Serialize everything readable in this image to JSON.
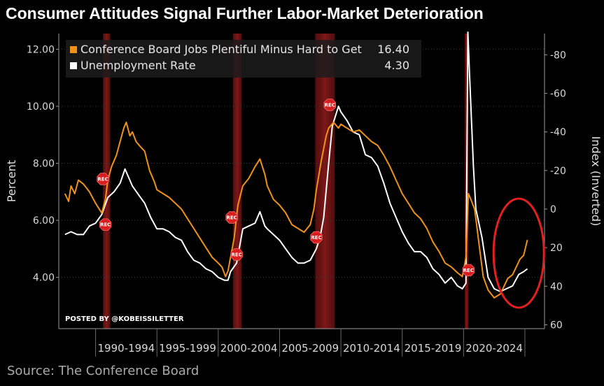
{
  "title": "Consumer Attitudes Signal Further Labor-Market Deterioration",
  "source": "Source: The Conference Board",
  "watermark": "POSTED BY @KOBEISSILETTER",
  "chart_data": {
    "type": "line",
    "ylabel_left": "Percent",
    "ylabel_right": "Index (Inverted)",
    "left_ticks": [
      "12.00",
      "10.00",
      "8.00",
      "6.00",
      "4.00"
    ],
    "left_range": [
      2.2,
      12.55
    ],
    "right_ticks": [
      "-80",
      "-60",
      "-40",
      "-20",
      "0",
      "20",
      "40",
      "60"
    ],
    "right_range_inverted": [
      62,
      -91
    ],
    "x_range": [
      1987.0,
      2026.6
    ],
    "x_tick_labels": [
      "1990-1994",
      "1995-1999",
      "2000-2004",
      "2005-2009",
      "2010-2014",
      "2015-2019",
      "2020-2024"
    ],
    "legend": [
      {
        "label": "Conference Board Jobs Plentiful Minus Hard to Get",
        "value": "16.40",
        "color": "#f0921a"
      },
      {
        "label": "Unemployment Rate",
        "value": "4.30",
        "color": "#ffffff"
      }
    ],
    "recessions": [
      [
        1990.6,
        1991.2
      ],
      [
        2001.2,
        2001.9
      ],
      [
        2007.9,
        2009.5
      ],
      [
        2020.1,
        2020.4
      ]
    ],
    "rec_markers": [
      {
        "x": 1990.6,
        "y_pct": 7.45,
        "text": "REC"
      },
      {
        "x": 1990.8,
        "y_pct": 5.85,
        "text": "REC"
      },
      {
        "x": 2001.1,
        "y_pct": 6.1,
        "text": "REC"
      },
      {
        "x": 2001.5,
        "y_pct": 4.8,
        "text": "REC"
      },
      {
        "x": 2008.0,
        "y_pct": 5.4,
        "text": "REC"
      },
      {
        "x": 2009.1,
        "y_pct": 10.05,
        "text": "REC"
      },
      {
        "x": 2020.4,
        "y_pct": 4.25,
        "text": "REC"
      }
    ],
    "series": [
      {
        "name": "Unemployment Rate",
        "axis": "left",
        "color": "#ffffff",
        "points": [
          [
            1987.5,
            5.5
          ],
          [
            1988.0,
            5.6
          ],
          [
            1988.5,
            5.5
          ],
          [
            1989.0,
            5.5
          ],
          [
            1989.5,
            5.8
          ],
          [
            1990.0,
            5.9
          ],
          [
            1990.5,
            6.2
          ],
          [
            1991.0,
            6.8
          ],
          [
            1991.5,
            7.0
          ],
          [
            1992.0,
            7.3
          ],
          [
            1992.4,
            7.8
          ],
          [
            1992.7,
            7.5
          ],
          [
            1993.0,
            7.2
          ],
          [
            1993.5,
            6.9
          ],
          [
            1994.0,
            6.6
          ],
          [
            1994.5,
            6.1
          ],
          [
            1995.0,
            5.7
          ],
          [
            1995.5,
            5.7
          ],
          [
            1996.0,
            5.6
          ],
          [
            1996.5,
            5.4
          ],
          [
            1997.0,
            5.3
          ],
          [
            1997.5,
            4.9
          ],
          [
            1998.0,
            4.6
          ],
          [
            1998.5,
            4.5
          ],
          [
            1999.0,
            4.3
          ],
          [
            1999.5,
            4.2
          ],
          [
            2000.0,
            4.0
          ],
          [
            2000.5,
            3.9
          ],
          [
            2000.8,
            3.9
          ],
          [
            2001.0,
            4.2
          ],
          [
            2001.5,
            4.5
          ],
          [
            2002.0,
            5.7
          ],
          [
            2002.5,
            5.8
          ],
          [
            2003.0,
            5.9
          ],
          [
            2003.4,
            6.3
          ],
          [
            2003.8,
            5.8
          ],
          [
            2004.0,
            5.7
          ],
          [
            2004.5,
            5.5
          ],
          [
            2005.0,
            5.3
          ],
          [
            2005.5,
            5.0
          ],
          [
            2006.0,
            4.7
          ],
          [
            2006.5,
            4.5
          ],
          [
            2007.0,
            4.5
          ],
          [
            2007.5,
            4.6
          ],
          [
            2008.0,
            5.0
          ],
          [
            2008.3,
            5.4
          ],
          [
            2008.6,
            6.1
          ],
          [
            2009.0,
            8.0
          ],
          [
            2009.3,
            9.3
          ],
          [
            2009.8,
            10.0
          ],
          [
            2010.0,
            9.8
          ],
          [
            2010.5,
            9.5
          ],
          [
            2011.0,
            9.1
          ],
          [
            2011.5,
            9.0
          ],
          [
            2012.0,
            8.3
          ],
          [
            2012.5,
            8.2
          ],
          [
            2013.0,
            7.9
          ],
          [
            2013.5,
            7.3
          ],
          [
            2014.0,
            6.6
          ],
          [
            2014.5,
            6.1
          ],
          [
            2015.0,
            5.6
          ],
          [
            2015.5,
            5.2
          ],
          [
            2016.0,
            4.9
          ],
          [
            2016.5,
            4.9
          ],
          [
            2017.0,
            4.7
          ],
          [
            2017.5,
            4.3
          ],
          [
            2018.0,
            4.1
          ],
          [
            2018.5,
            3.8
          ],
          [
            2019.0,
            4.0
          ],
          [
            2019.5,
            3.7
          ],
          [
            2019.9,
            3.6
          ],
          [
            2020.2,
            3.8
          ],
          [
            2020.35,
            14.7
          ],
          [
            2020.5,
            11.0
          ],
          [
            2020.8,
            7.9
          ],
          [
            2021.0,
            6.4
          ],
          [
            2021.5,
            5.4
          ],
          [
            2022.0,
            4.0
          ],
          [
            2022.5,
            3.6
          ],
          [
            2023.0,
            3.5
          ],
          [
            2023.5,
            3.6
          ],
          [
            2024.0,
            3.7
          ],
          [
            2024.5,
            4.1
          ],
          [
            2024.9,
            4.2
          ],
          [
            2025.2,
            4.3
          ]
        ]
      },
      {
        "name": "Conference Board Jobs Plentiful Minus Hard to Get",
        "axis": "right",
        "color": "#f0921a",
        "points": [
          [
            1987.5,
            -8
          ],
          [
            1987.8,
            -4
          ],
          [
            1988.0,
            -12
          ],
          [
            1988.3,
            -8
          ],
          [
            1988.6,
            -15
          ],
          [
            1989.0,
            -13
          ],
          [
            1989.5,
            -9
          ],
          [
            1990.0,
            -3
          ],
          [
            1990.5,
            2
          ],
          [
            1990.8,
            -5
          ],
          [
            1991.0,
            -15
          ],
          [
            1991.3,
            -22
          ],
          [
            1991.7,
            -28
          ],
          [
            1992.0,
            -35
          ],
          [
            1992.3,
            -42
          ],
          [
            1992.5,
            -45
          ],
          [
            1992.8,
            -38
          ],
          [
            1993.0,
            -40
          ],
          [
            1993.3,
            -35
          ],
          [
            1993.7,
            -32
          ],
          [
            1994.0,
            -30
          ],
          [
            1994.4,
            -20
          ],
          [
            1994.8,
            -14
          ],
          [
            1995.0,
            -10
          ],
          [
            1995.5,
            -8
          ],
          [
            1996.0,
            -6
          ],
          [
            1996.5,
            -3
          ],
          [
            1997.0,
            0
          ],
          [
            1997.5,
            5
          ],
          [
            1998.0,
            10
          ],
          [
            1998.5,
            15
          ],
          [
            1999.0,
            20
          ],
          [
            1999.5,
            25
          ],
          [
            2000.0,
            28
          ],
          [
            2000.3,
            30
          ],
          [
            2000.6,
            35
          ],
          [
            2000.8,
            32
          ],
          [
            2001.0,
            25
          ],
          [
            2001.3,
            15
          ],
          [
            2001.6,
            -2
          ],
          [
            2002.0,
            -12
          ],
          [
            2002.5,
            -16
          ],
          [
            2003.0,
            -22
          ],
          [
            2003.4,
            -26
          ],
          [
            2003.8,
            -18
          ],
          [
            2004.0,
            -12
          ],
          [
            2004.5,
            -5
          ],
          [
            2005.0,
            -2
          ],
          [
            2005.5,
            2
          ],
          [
            2006.0,
            8
          ],
          [
            2006.5,
            10
          ],
          [
            2007.0,
            12
          ],
          [
            2007.5,
            8
          ],
          [
            2007.8,
            0
          ],
          [
            2008.0,
            -10
          ],
          [
            2008.4,
            -25
          ],
          [
            2008.8,
            -38
          ],
          [
            2009.0,
            -42
          ],
          [
            2009.4,
            -45
          ],
          [
            2009.8,
            -42
          ],
          [
            2010.0,
            -44
          ],
          [
            2010.5,
            -42
          ],
          [
            2011.0,
            -40
          ],
          [
            2011.5,
            -41
          ],
          [
            2012.0,
            -38
          ],
          [
            2012.5,
            -35
          ],
          [
            2013.0,
            -33
          ],
          [
            2013.5,
            -28
          ],
          [
            2014.0,
            -22
          ],
          [
            2014.5,
            -15
          ],
          [
            2015.0,
            -8
          ],
          [
            2015.5,
            -3
          ],
          [
            2016.0,
            2
          ],
          [
            2016.5,
            5
          ],
          [
            2017.0,
            10
          ],
          [
            2017.5,
            17
          ],
          [
            2018.0,
            22
          ],
          [
            2018.5,
            28
          ],
          [
            2019.0,
            30
          ],
          [
            2019.5,
            33
          ],
          [
            2019.9,
            35
          ],
          [
            2020.2,
            25
          ],
          [
            2020.4,
            -8
          ],
          [
            2020.6,
            -5
          ],
          [
            2020.9,
            0
          ],
          [
            2021.0,
            5
          ],
          [
            2021.3,
            20
          ],
          [
            2021.6,
            35
          ],
          [
            2022.0,
            42
          ],
          [
            2022.5,
            46
          ],
          [
            2023.0,
            44
          ],
          [
            2023.3,
            40
          ],
          [
            2023.6,
            36
          ],
          [
            2024.0,
            34
          ],
          [
            2024.3,
            30
          ],
          [
            2024.6,
            26
          ],
          [
            2024.9,
            24
          ],
          [
            2025.2,
            16
          ]
        ]
      }
    ],
    "highlight_ellipse": {
      "cx": 2024.5,
      "cy_pct": 4.85,
      "color": "#e32020"
    }
  }
}
